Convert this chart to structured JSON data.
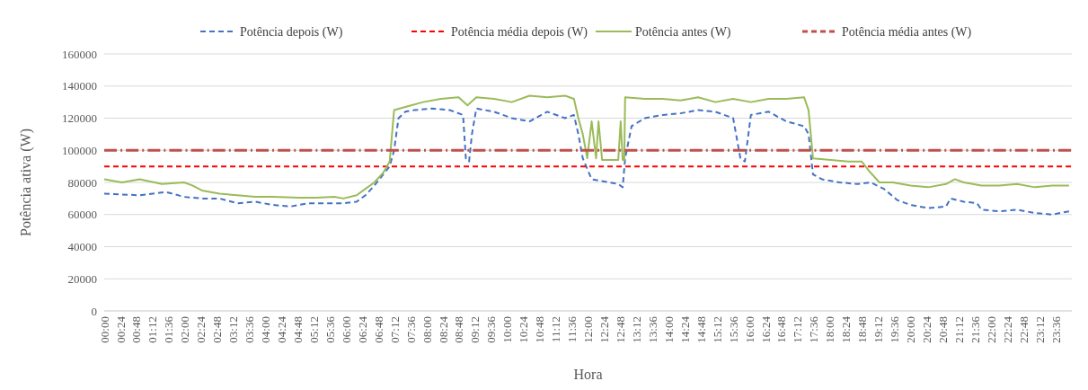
{
  "chart_data": {
    "type": "line",
    "xlabel": "Hora",
    "ylabel": "Potência ativa (W)",
    "grid": "y",
    "legend": "top",
    "marker": "none",
    "xlim": [
      0,
      24
    ],
    "ylim": [
      0,
      160000
    ],
    "yticks": [
      0,
      20000,
      40000,
      60000,
      80000,
      100000,
      120000,
      140000,
      160000
    ],
    "xticks": [
      {
        "value": 0,
        "label": "00:00"
      },
      {
        "value": 0.4,
        "label": "00:24"
      },
      {
        "value": 0.8,
        "label": "00:48"
      },
      {
        "value": 1.2,
        "label": "01:12"
      },
      {
        "value": 1.6,
        "label": "01:36"
      },
      {
        "value": 2,
        "label": "02:00"
      },
      {
        "value": 2.4,
        "label": "02:24"
      },
      {
        "value": 2.8,
        "label": "02:48"
      },
      {
        "value": 3.2,
        "label": "03:12"
      },
      {
        "value": 3.6,
        "label": "03:36"
      },
      {
        "value": 4,
        "label": "04:00"
      },
      {
        "value": 4.4,
        "label": "04:24"
      },
      {
        "value": 4.8,
        "label": "04:48"
      },
      {
        "value": 5.2,
        "label": "05:12"
      },
      {
        "value": 5.6,
        "label": "05:36"
      },
      {
        "value": 6,
        "label": "06:00"
      },
      {
        "value": 6.4,
        "label": "06:24"
      },
      {
        "value": 6.8,
        "label": "06:48"
      },
      {
        "value": 7.2,
        "label": "07:12"
      },
      {
        "value": 7.6,
        "label": "07:36"
      },
      {
        "value": 8,
        "label": "08:00"
      },
      {
        "value": 8.4,
        "label": "08:24"
      },
      {
        "value": 8.8,
        "label": "08:48"
      },
      {
        "value": 9.2,
        "label": "09:12"
      },
      {
        "value": 9.6,
        "label": "09:36"
      },
      {
        "value": 10,
        "label": "10:00"
      },
      {
        "value": 10.4,
        "label": "10:24"
      },
      {
        "value": 10.8,
        "label": "10:48"
      },
      {
        "value": 11.2,
        "label": "11:12"
      },
      {
        "value": 11.6,
        "label": "11:36"
      },
      {
        "value": 12,
        "label": "12:00"
      },
      {
        "value": 12.4,
        "label": "12:24"
      },
      {
        "value": 12.8,
        "label": "12:48"
      },
      {
        "value": 13.2,
        "label": "13:12"
      },
      {
        "value": 13.6,
        "label": "13:36"
      },
      {
        "value": 14,
        "label": "14:00"
      },
      {
        "value": 14.4,
        "label": "14:24"
      },
      {
        "value": 14.8,
        "label": "14:48"
      },
      {
        "value": 15.2,
        "label": "15:12"
      },
      {
        "value": 15.6,
        "label": "15:36"
      },
      {
        "value": 16,
        "label": "16:00"
      },
      {
        "value": 16.4,
        "label": "16:24"
      },
      {
        "value": 16.8,
        "label": "16:48"
      },
      {
        "value": 17.2,
        "label": "17:12"
      },
      {
        "value": 17.6,
        "label": "17:36"
      },
      {
        "value": 18,
        "label": "18:00"
      },
      {
        "value": 18.4,
        "label": "18:24"
      },
      {
        "value": 18.8,
        "label": "18:48"
      },
      {
        "value": 19.2,
        "label": "19:12"
      },
      {
        "value": 19.6,
        "label": "19:36"
      },
      {
        "value": 20,
        "label": "20:00"
      },
      {
        "value": 20.4,
        "label": "20:24"
      },
      {
        "value": 20.8,
        "label": "20:48"
      },
      {
        "value": 21.2,
        "label": "21:12"
      },
      {
        "value": 21.6,
        "label": "21:36"
      },
      {
        "value": 22,
        "label": "22:00"
      },
      {
        "value": 22.4,
        "label": "22:24"
      },
      {
        "value": 22.8,
        "label": "22:48"
      },
      {
        "value": 23.2,
        "label": "23:12"
      },
      {
        "value": 23.6,
        "label": "23:36"
      }
    ],
    "series": [
      {
        "name": "Potência depois (W)",
        "color": "#4472c4",
        "line_style": "dashed",
        "x": [
          0,
          0.88,
          1.54,
          1.98,
          2.42,
          2.86,
          3.3,
          3.74,
          4.18,
          4.62,
          5.05,
          5.49,
          5.93,
          6.26,
          6.48,
          6.7,
          6.92,
          7.08,
          7.19,
          7.3,
          7.47,
          7.69,
          8.13,
          8.57,
          8.9,
          8.97,
          9.05,
          9.12,
          9.23,
          9.67,
          10.11,
          10.55,
          10.99,
          11.43,
          11.65,
          11.76,
          11.87,
          12.09,
          12.53,
          12.75,
          12.86,
          12.92,
          13.08,
          13.41,
          13.85,
          14.29,
          14.73,
          15.16,
          15.6,
          15.78,
          15.89,
          16.04,
          16.48,
          16.92,
          17.36,
          17.47,
          17.58,
          17.8,
          18.24,
          18.68,
          19.01,
          19.34,
          19.67,
          20,
          20.44,
          20.88,
          20.99,
          21.32,
          21.65,
          21.76,
          22.2,
          22.64,
          23.08,
          23.52,
          23.93
        ],
        "values": [
          73000,
          72000,
          74000,
          71000,
          70000,
          70000,
          67000,
          68000,
          66000,
          65000,
          67000,
          67000,
          67000,
          68000,
          72000,
          78000,
          85000,
          90000,
          100000,
          120000,
          124000,
          125000,
          126000,
          125000,
          122000,
          95000,
          93000,
          110000,
          126000,
          124000,
          120000,
          118000,
          124000,
          120000,
          122000,
          110000,
          95000,
          82000,
          80000,
          79000,
          77000,
          95000,
          115000,
          120000,
          122000,
          123000,
          125000,
          124000,
          120000,
          95000,
          93000,
          122000,
          124000,
          118000,
          115000,
          110000,
          85000,
          82000,
          80000,
          79000,
          80000,
          76000,
          69000,
          66000,
          64000,
          65000,
          70000,
          68000,
          67000,
          63000,
          62000,
          63000,
          61000,
          60000,
          62000
        ]
      },
      {
        "name": "Potência média depois (W)",
        "color": "#ff0000",
        "line_style": "dashed",
        "x": [
          0,
          23.98
        ],
        "values": [
          90000,
          90000
        ]
      },
      {
        "name": "Potência antes (W)",
        "color": "#9bbb59",
        "line_style": "solid",
        "x": [
          0,
          0.44,
          0.88,
          1.43,
          1.98,
          2.2,
          2.42,
          2.86,
          3.3,
          3.74,
          4.18,
          4.84,
          5.27,
          5.71,
          5.93,
          6.26,
          6.48,
          6.7,
          6.92,
          7.08,
          7.19,
          7.47,
          7.91,
          8.35,
          8.79,
          9.01,
          9.23,
          9.67,
          10.11,
          10.55,
          10.99,
          11.43,
          11.65,
          11.76,
          11.87,
          11.98,
          12.09,
          12.2,
          12.26,
          12.35,
          12.53,
          12.75,
          12.81,
          12.86,
          12.9,
          12.92,
          13.41,
          13.85,
          14.29,
          14.73,
          15.16,
          15.6,
          16.04,
          16.48,
          16.92,
          17.36,
          17.47,
          17.58,
          18.02,
          18.46,
          18.79,
          19.01,
          19.23,
          19.56,
          20,
          20.44,
          20.88,
          21.1,
          21.32,
          21.76,
          22.2,
          22.64,
          23.08,
          23.52,
          23.93
        ],
        "values": [
          82000,
          80000,
          82000,
          79000,
          80000,
          78000,
          75000,
          73000,
          72000,
          71000,
          71000,
          70500,
          70500,
          71000,
          70000,
          72000,
          76000,
          80000,
          86000,
          93000,
          125000,
          127000,
          130000,
          132000,
          133000,
          128000,
          133000,
          132000,
          130000,
          134000,
          133000,
          134000,
          132000,
          120000,
          110000,
          95000,
          118000,
          95000,
          118000,
          94000,
          94000,
          94000,
          118000,
          94000,
          94000,
          133000,
          132000,
          132000,
          131000,
          133000,
          130000,
          132000,
          130000,
          132000,
          132000,
          133000,
          125000,
          95000,
          94000,
          93000,
          93000,
          86000,
          80000,
          80000,
          78000,
          77000,
          79000,
          82000,
          80000,
          78000,
          78000,
          79000,
          77000,
          78000,
          78000
        ]
      },
      {
        "name": "Potência média antes (W)",
        "color": "#c0504d",
        "line_style": "dashed",
        "x": [
          0,
          23.98
        ],
        "values": [
          100000,
          100000
        ]
      }
    ]
  }
}
